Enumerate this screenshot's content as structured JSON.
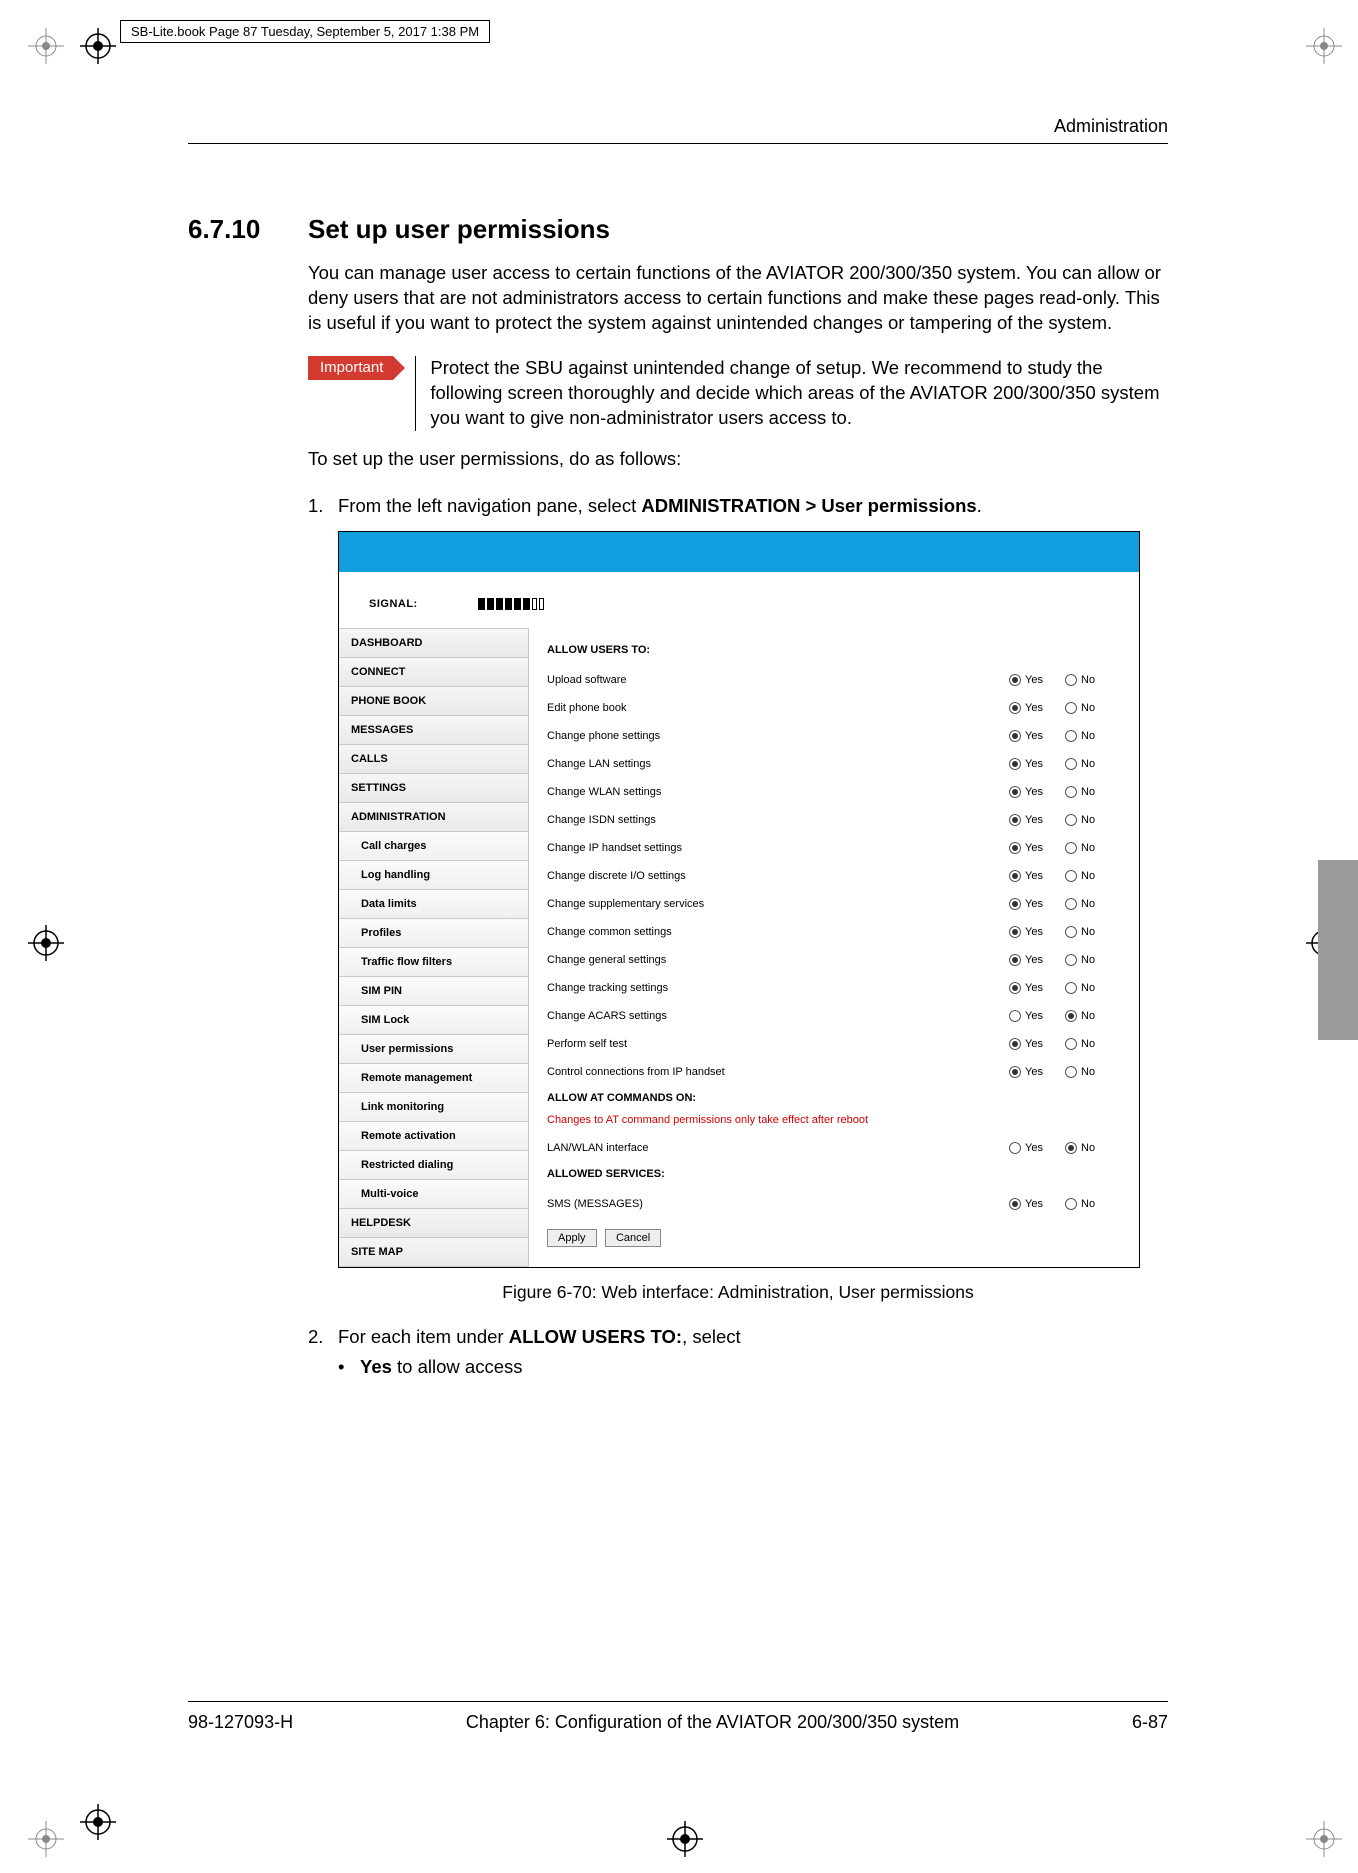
{
  "book_header": "SB-Lite.book  Page 87  Tuesday, September 5, 2017  1:38 PM",
  "running_head": "Administration",
  "section_num": "6.7.10",
  "section_title": "Set up user permissions",
  "intro_para": "You can manage user access to certain functions of the AVIATOR 200/300/350 system. You can allow or deny users that are not administrators access to certain functions and make these pages read-only. This is useful if you want to protect the system against unintended changes or tampering of the system.",
  "important_label": "Important",
  "important_text": "Protect the SBU against unintended change of setup. We recommend to study the following screen thoroughly and decide which areas of the AVIATOR 200/300/350 system you want to give non-administrator users access to.",
  "lead_in": "To set up the user permissions, do as follows:",
  "step1_prefix": "From the left navigation pane, select ",
  "step1_bold": "ADMINISTRATION > User permissions",
  "step1_suffix": ".",
  "fig_caption": "Figure 6-70: Web interface: Administration, User permissions",
  "step2_prefix": "For each item under ",
  "step2_bold": "ALLOW USERS TO:",
  "step2_suffix": ", select",
  "bullet1_bold": "Yes",
  "bullet1_rest": " to allow access",
  "footer_left": "98-127093-H",
  "footer_center": "Chapter 6:  Configuration of the AVIATOR 200/300/350 system",
  "footer_right": "6-87",
  "colors": {
    "important_bg": "#d43a2f",
    "topbar": "#119fe0",
    "red_note": "#d40000",
    "thumb_tab": "#9a9a9a"
  },
  "screenshot": {
    "signal_label": "SIGNAL:",
    "signal_filled": 6,
    "signal_empty": 2,
    "nav": [
      {
        "label": "DASHBOARD",
        "sub": false
      },
      {
        "label": "CONNECT",
        "sub": false
      },
      {
        "label": "PHONE BOOK",
        "sub": false
      },
      {
        "label": "MESSAGES",
        "sub": false
      },
      {
        "label": "CALLS",
        "sub": false
      },
      {
        "label": "SETTINGS",
        "sub": false
      },
      {
        "label": "ADMINISTRATION",
        "sub": false
      },
      {
        "label": "Call charges",
        "sub": true
      },
      {
        "label": "Log handling",
        "sub": true
      },
      {
        "label": "Data limits",
        "sub": true
      },
      {
        "label": "Profiles",
        "sub": true
      },
      {
        "label": "Traffic flow filters",
        "sub": true
      },
      {
        "label": "SIM PIN",
        "sub": true
      },
      {
        "label": "SIM Lock",
        "sub": true
      },
      {
        "label": "User permissions",
        "sub": true
      },
      {
        "label": "Remote management",
        "sub": true
      },
      {
        "label": "Link monitoring",
        "sub": true
      },
      {
        "label": "Remote activation",
        "sub": true
      },
      {
        "label": "Restricted dialing",
        "sub": true
      },
      {
        "label": "Multi-voice",
        "sub": true
      },
      {
        "label": "HELPDESK",
        "sub": false
      },
      {
        "label": "SITE MAP",
        "sub": false
      }
    ],
    "group1_head": "ALLOW USERS TO:",
    "yes": "Yes",
    "no": "No",
    "perms": [
      {
        "label": "Upload software",
        "sel": "yes"
      },
      {
        "label": "Edit phone book",
        "sel": "yes"
      },
      {
        "label": "Change phone settings",
        "sel": "yes"
      },
      {
        "label": "Change LAN settings",
        "sel": "yes"
      },
      {
        "label": "Change WLAN settings",
        "sel": "yes"
      },
      {
        "label": "Change ISDN settings",
        "sel": "yes"
      },
      {
        "label": "Change IP handset settings",
        "sel": "yes"
      },
      {
        "label": "Change discrete I/O settings",
        "sel": "yes"
      },
      {
        "label": "Change supplementary services",
        "sel": "yes"
      },
      {
        "label": "Change common settings",
        "sel": "yes"
      },
      {
        "label": "Change general settings",
        "sel": "yes"
      },
      {
        "label": "Change tracking settings",
        "sel": "yes"
      },
      {
        "label": "Change ACARS settings",
        "sel": "no"
      },
      {
        "label": "Perform self test",
        "sel": "yes"
      },
      {
        "label": "Control connections from IP handset",
        "sel": "yes"
      }
    ],
    "group2_head": "ALLOW AT COMMANDS ON:",
    "red_note": "Changes to AT command permissions only take effect after reboot",
    "at_perms": [
      {
        "label": "LAN/WLAN interface",
        "sel": "no"
      }
    ],
    "group3_head": "ALLOWED SERVICES:",
    "svc_perms": [
      {
        "label": "SMS (MESSAGES)",
        "sel": "yes"
      }
    ],
    "btn_apply": "Apply",
    "btn_cancel": "Cancel"
  }
}
